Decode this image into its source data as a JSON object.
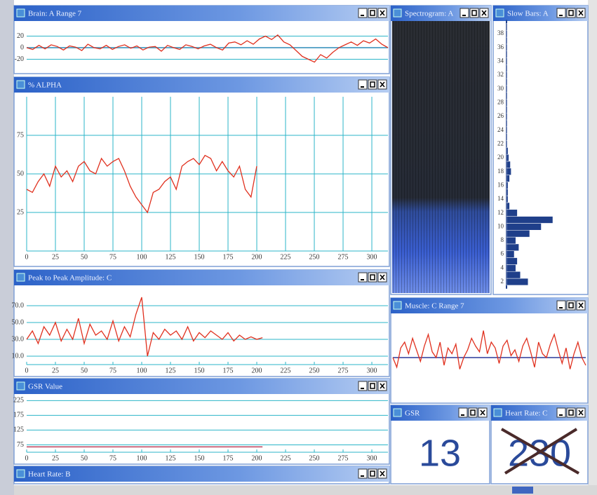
{
  "chart_data": [
    {
      "type": "line",
      "title": "Brain: A Range 7",
      "color": "#e0301e",
      "ylim": [
        -40,
        40
      ],
      "yticks": [
        20,
        0,
        -20
      ],
      "grid": "y",
      "values": [
        0,
        -3,
        4,
        -2,
        5,
        2,
        -4,
        3,
        1,
        -5,
        6,
        0,
        -2,
        4,
        -3,
        2,
        5,
        -1,
        3,
        -4,
        1,
        2,
        -6,
        4,
        0,
        -3,
        5,
        2,
        -2,
        3,
        6,
        0,
        -4,
        8,
        10,
        5,
        12,
        6,
        15,
        20,
        14,
        22,
        10,
        5,
        -5,
        -15,
        -20,
        -25,
        -12,
        -18,
        -8,
        0,
        5,
        10,
        4,
        12,
        8,
        15,
        6,
        0
      ]
    },
    {
      "type": "line",
      "title": "% ALPHA",
      "color": "#e0301e",
      "xlim": [
        0,
        314
      ],
      "xticks": [
        0,
        25,
        50,
        75,
        100,
        125,
        150,
        175,
        200,
        225,
        250,
        275,
        300
      ],
      "ylim": [
        0,
        100
      ],
      "yticks": [
        25,
        50,
        75
      ],
      "grid": "both",
      "x": [
        0,
        5,
        10,
        15,
        20,
        25,
        30,
        35,
        40,
        45,
        50,
        55,
        60,
        65,
        70,
        75,
        80,
        85,
        90,
        95,
        100,
        105,
        110,
        115,
        120,
        125,
        130,
        135,
        140,
        145,
        150,
        155,
        160,
        165,
        170,
        175,
        180,
        185,
        190,
        195,
        200
      ],
      "values": [
        40,
        38,
        45,
        50,
        42,
        55,
        48,
        52,
        45,
        55,
        58,
        52,
        50,
        60,
        55,
        58,
        60,
        52,
        42,
        35,
        30,
        25,
        38,
        40,
        45,
        48,
        40,
        55,
        58,
        60,
        56,
        62,
        60,
        52,
        58,
        52,
        48,
        55,
        40,
        35,
        55
      ]
    },
    {
      "type": "line",
      "title": "Peak to Peak Amplitude: C",
      "color": "#e0301e",
      "xlim": [
        0,
        314
      ],
      "xticks": [
        0,
        25,
        50,
        75,
        100,
        125,
        150,
        175,
        200,
        225,
        250,
        275,
        300
      ],
      "ylim": [
        0,
        90
      ],
      "yticks": [
        {
          "value": 10,
          "label": "10.0"
        },
        {
          "value": 30,
          "label": "30.0"
        },
        {
          "value": 50,
          "label": "50.0"
        },
        {
          "value": 70,
          "label": "70.0"
        }
      ],
      "grid": "y",
      "x": [
        0,
        5,
        10,
        15,
        20,
        25,
        30,
        35,
        40,
        45,
        50,
        55,
        60,
        65,
        70,
        75,
        80,
        85,
        90,
        95,
        100,
        105,
        110,
        115,
        120,
        125,
        130,
        135,
        140,
        145,
        150,
        155,
        160,
        165,
        170,
        175,
        180,
        185,
        190,
        195,
        200,
        205
      ],
      "values": [
        30,
        40,
        25,
        45,
        35,
        50,
        28,
        42,
        30,
        55,
        25,
        48,
        35,
        40,
        30,
        52,
        28,
        45,
        33,
        60,
        80,
        10,
        38,
        30,
        42,
        35,
        40,
        30,
        45,
        28,
        38,
        32,
        40,
        35,
        30,
        38,
        28,
        35,
        30,
        33,
        30,
        32
      ]
    },
    {
      "type": "line",
      "title": "GSR Value",
      "color": "#b02040",
      "xlim": [
        0,
        314
      ],
      "xticks": [
        0,
        25,
        50,
        75,
        100,
        125,
        150,
        175,
        200,
        225,
        250,
        275,
        300
      ],
      "ylim": [
        50,
        240
      ],
      "yticks": [
        75,
        125,
        175,
        225
      ],
      "grid": "y",
      "x": [
        0,
        205
      ],
      "values": [
        68,
        68
      ]
    },
    {
      "type": "barh",
      "title": "Slow Bars: A",
      "color": "#1f3f8a",
      "xlim": [
        0,
        100
      ],
      "ylim": [
        1,
        40
      ],
      "yticks": [
        2,
        4,
        6,
        8,
        10,
        12,
        14,
        16,
        18,
        20,
        22,
        24,
        26,
        28,
        30,
        32,
        34,
        36,
        38
      ],
      "y": [
        2,
        3,
        4,
        5,
        6,
        7,
        8,
        9,
        10,
        11,
        12,
        13,
        14,
        15,
        16,
        17,
        18,
        19,
        20,
        21,
        22,
        23,
        24,
        25,
        26,
        27,
        28,
        29,
        30,
        31,
        32,
        33,
        34,
        35,
        36,
        37,
        38,
        39
      ],
      "values": [
        28,
        18,
        12,
        14,
        10,
        16,
        12,
        30,
        45,
        60,
        14,
        4,
        2,
        2,
        2,
        4,
        6,
        5,
        3,
        2,
        1,
        1,
        1,
        1,
        1,
        1,
        1,
        1,
        1,
        1,
        1,
        1,
        1,
        1,
        1,
        1,
        1,
        1
      ]
    },
    {
      "type": "line",
      "title": "Muscle: C Range 7",
      "color": "#e0301e",
      "ylim": [
        -20,
        20
      ],
      "values": [
        0,
        -5,
        5,
        8,
        2,
        10,
        4,
        -2,
        6,
        12,
        3,
        0,
        8,
        -4,
        5,
        2,
        7,
        -6,
        0,
        4,
        10,
        6,
        3,
        14,
        2,
        8,
        5,
        -3,
        6,
        9,
        1,
        4,
        -2,
        6,
        10,
        3,
        -5,
        8,
        2,
        0,
        7,
        12,
        4,
        -3,
        5,
        -6,
        2,
        8,
        0,
        -4
      ]
    }
  ],
  "panels": {
    "spectrogram": {
      "title": "Spectrogram: A"
    },
    "heart_rate_b": {
      "title": "Heart Rate: B"
    },
    "gsr": {
      "title": "GSR",
      "value": 13
    },
    "heart_rate_c": {
      "title": "Heart Rate: C",
      "value": 230
    }
  }
}
